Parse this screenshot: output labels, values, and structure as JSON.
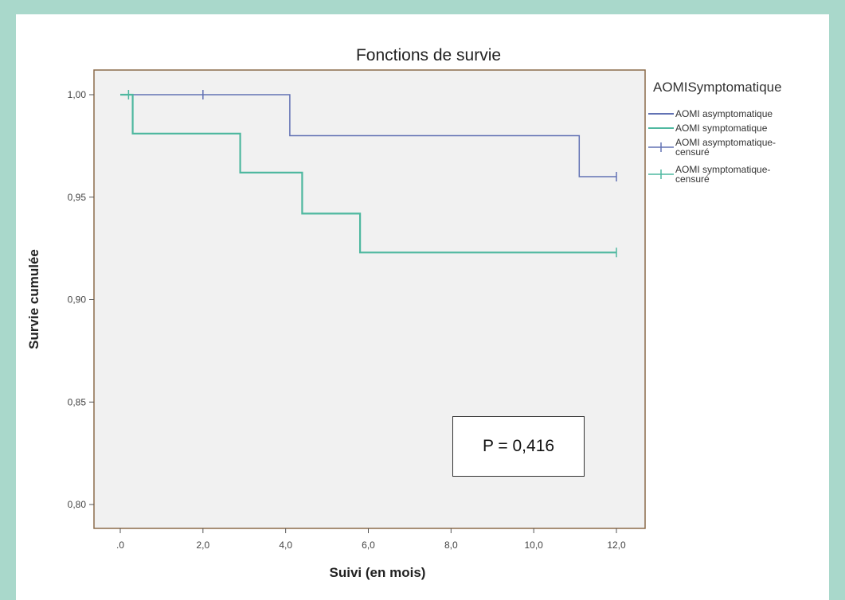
{
  "chart_data": {
    "type": "line",
    "title": "Fonctions de survie",
    "xlabel": "Suivi (en mois)",
    "ylabel": "Survie cumulée",
    "xlim": [
      0,
      12
    ],
    "ylim": [
      0.8,
      1.0
    ],
    "x_ticks": [
      ".0",
      "2,0",
      "4,0",
      "6,0",
      "8,0",
      "10,0",
      "12,0"
    ],
    "y_ticks": [
      "0,80",
      "0,85",
      "0,90",
      "0,95",
      "1,00"
    ],
    "grid": false,
    "legend_title": "AOMISymptomatique",
    "legend_position": "right",
    "series": [
      {
        "name": "AOMI asymptomatique",
        "color": "#6272b4",
        "step_points": [
          [
            0,
            1.0
          ],
          [
            4.1,
            1.0
          ],
          [
            4.1,
            0.98
          ],
          [
            11.1,
            0.98
          ],
          [
            11.1,
            0.96
          ],
          [
            12,
            0.96
          ]
        ],
        "censored": [
          [
            2.0,
            1.0
          ],
          [
            12.0,
            0.96
          ]
        ]
      },
      {
        "name": "AOMI symptomatique",
        "color": "#4fb8a0",
        "step_points": [
          [
            0,
            1.0
          ],
          [
            0.3,
            1.0
          ],
          [
            0.3,
            0.981
          ],
          [
            2.9,
            0.981
          ],
          [
            2.9,
            0.962
          ],
          [
            4.4,
            0.962
          ],
          [
            4.4,
            0.942
          ],
          [
            5.8,
            0.942
          ],
          [
            5.8,
            0.923
          ],
          [
            12,
            0.923
          ]
        ],
        "censored": [
          [
            0.2,
            1.0
          ],
          [
            12.0,
            0.923
          ]
        ]
      }
    ],
    "legend": [
      "AOMI asymptomatique",
      "AOMI symptomatique",
      "AOMI asymptomatique-censuré",
      "AOMI symptomatique-censuré"
    ],
    "annotation": "P = 0,416"
  }
}
